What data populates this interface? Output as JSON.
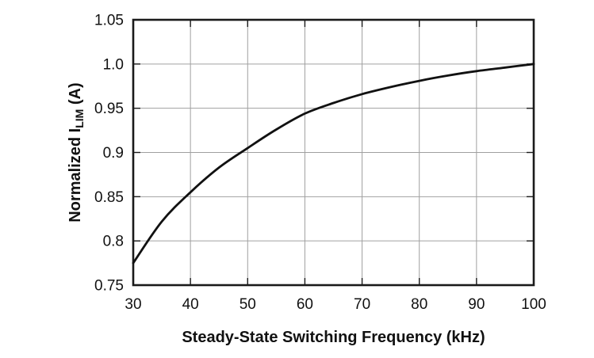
{
  "chart_data": {
    "type": "line",
    "title": "",
    "xlabel": "Steady-State Switching Frequency (kHz)",
    "ylabel": "Normalized ILIM (A)",
    "ylabel_parts": [
      {
        "text": "Normalized I",
        "sub": false
      },
      {
        "text": "LIM",
        "sub": true
      },
      {
        "text": " (A)",
        "sub": false
      }
    ],
    "x": [
      30,
      35,
      40,
      45,
      50,
      55,
      60,
      65,
      70,
      75,
      80,
      85,
      90,
      95,
      100
    ],
    "series": [
      {
        "name": "Normalized ILIM",
        "values": [
          0.775,
          0.822,
          0.855,
          0.883,
          0.905,
          0.926,
          0.944,
          0.956,
          0.966,
          0.974,
          0.981,
          0.987,
          0.992,
          0.996,
          1.0
        ]
      }
    ],
    "xlim": [
      30,
      100
    ],
    "ylim": [
      0.75,
      1.05
    ],
    "x_ticks": [
      30,
      40,
      50,
      60,
      70,
      80,
      90,
      100
    ],
    "x_tick_labels": [
      "30",
      "40",
      "50",
      "60",
      "70",
      "80",
      "90",
      "100"
    ],
    "y_ticks": [
      0.75,
      0.8,
      0.85,
      0.9,
      0.95,
      1.0,
      1.05
    ],
    "y_tick_labels": [
      "0.75",
      "0.8",
      "0.85",
      "0.9",
      "0.95",
      "1.0",
      "1.05"
    ],
    "grid": true,
    "legend": "none",
    "colors": {
      "line": "#111111",
      "grid": "#a0a0a0",
      "axis": "#1a1a1a",
      "text": "#111111",
      "background": "#ffffff"
    }
  }
}
